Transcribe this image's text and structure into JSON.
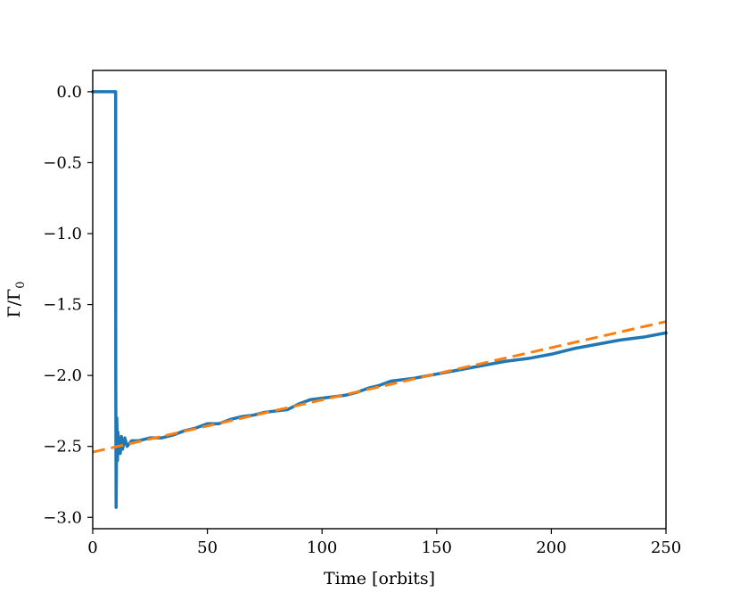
{
  "chart_data": {
    "type": "line",
    "title": "",
    "xlabel": "Time [orbits]",
    "ylabel": "Γ/Γ",
    "ylabel_subscript": "0",
    "xlim": [
      0,
      250
    ],
    "ylim": [
      -3.08,
      0.15
    ],
    "x_ticks": [
      0,
      50,
      100,
      150,
      200,
      250
    ],
    "x_tick_labels": [
      "0",
      "50",
      "100",
      "150",
      "200",
      "250"
    ],
    "y_ticks": [
      0.0,
      -0.5,
      -1.0,
      -1.5,
      -2.0,
      -2.5,
      -3.0
    ],
    "y_tick_labels": [
      "0.0",
      "−0.5",
      "−1.0",
      "−1.5",
      "−2.0",
      "−2.5",
      "−3.0"
    ],
    "grid": false,
    "series": [
      {
        "style": "solid",
        "color": "#1f77b4",
        "x": [
          0,
          10,
          10.05,
          10.2,
          10.5,
          10.8,
          11.0,
          11.3,
          11.6,
          12,
          12.5,
          13,
          14,
          15,
          17,
          20,
          25,
          30,
          35,
          40,
          45,
          50,
          55,
          60,
          65,
          70,
          75,
          80,
          85,
          90,
          95,
          100,
          105,
          110,
          115,
          120,
          125,
          130,
          140,
          150,
          160,
          170,
          180,
          190,
          200,
          210,
          220,
          230,
          240,
          250
        ],
        "y": [
          0.0,
          0.0,
          -2.0,
          -2.93,
          -2.3,
          -2.6,
          -2.4,
          -2.5,
          -2.45,
          -2.55,
          -2.43,
          -2.52,
          -2.44,
          -2.5,
          -2.46,
          -2.46,
          -2.44,
          -2.44,
          -2.42,
          -2.39,
          -2.37,
          -2.34,
          -2.34,
          -2.31,
          -2.29,
          -2.28,
          -2.26,
          -2.25,
          -2.24,
          -2.2,
          -2.17,
          -2.16,
          -2.15,
          -2.14,
          -2.12,
          -2.09,
          -2.07,
          -2.04,
          -2.02,
          -1.99,
          -1.96,
          -1.93,
          -1.9,
          -1.88,
          -1.85,
          -1.81,
          -1.78,
          -1.75,
          -1.73,
          -1.7
        ]
      },
      {
        "style": "dashed",
        "color": "#ff7f0e",
        "x": [
          0,
          250
        ],
        "y": [
          -2.54,
          -1.62
        ]
      }
    ]
  }
}
